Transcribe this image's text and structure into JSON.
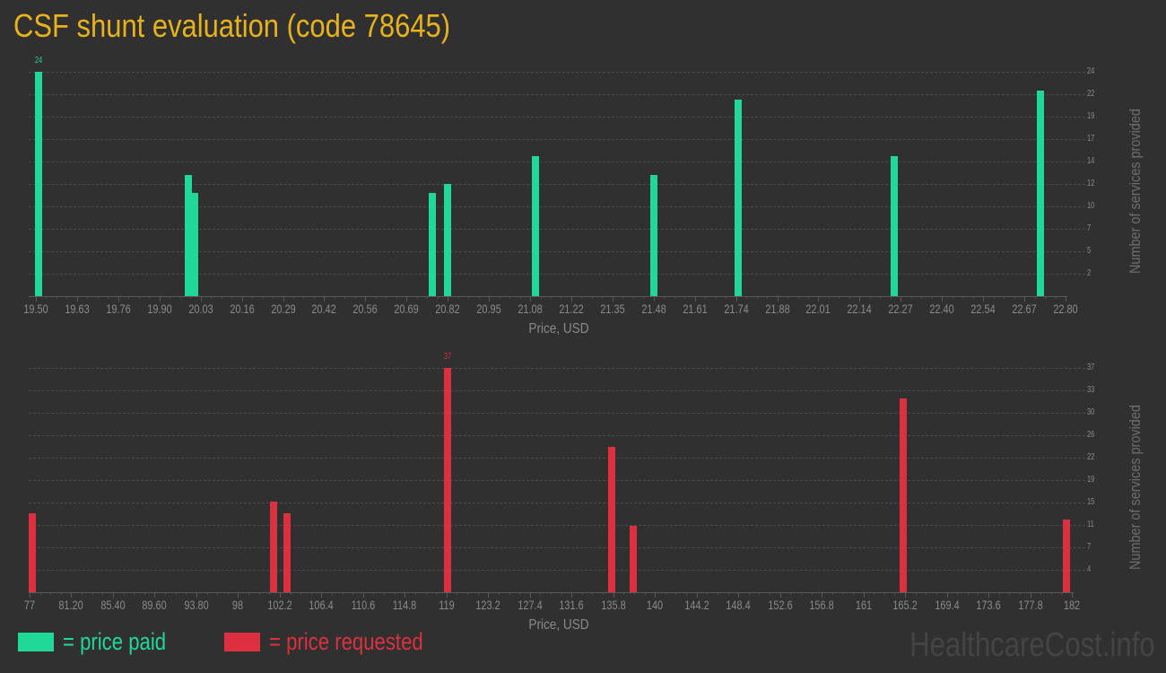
{
  "title": "CSF shunt evaluation (code 78645)",
  "colors": {
    "paid": "#20d898",
    "requested": "#dc3040",
    "title": "#e8b21e",
    "background": "#303030"
  },
  "legend": [
    {
      "label": "= price paid",
      "color": "#20d898"
    },
    {
      "label": "= price requested",
      "color": "#dc3040"
    }
  ],
  "watermark": "HealthcareCost.info",
  "chart_data": [
    {
      "type": "bar",
      "title": "price paid",
      "xlabel": "Price, USD",
      "ylabel": "Number of services provided",
      "xlim": [
        19.5,
        22.8
      ],
      "ylim": [
        0,
        24
      ],
      "grid": true,
      "x_ticks": [
        "19.50",
        "19.63",
        "19.76",
        "19.90",
        "20.03",
        "20.16",
        "20.29",
        "20.42",
        "20.56",
        "20.69",
        "20.82",
        "20.95",
        "21.08",
        "21.22",
        "21.35",
        "21.48",
        "21.61",
        "21.74",
        "21.88",
        "22.01",
        "22.14",
        "22.27",
        "22.40",
        "22.54",
        "22.67",
        "22.80"
      ],
      "y_ticks": [
        "24",
        "22",
        "19",
        "17",
        "14",
        "12",
        "10",
        "7",
        "5",
        "2"
      ],
      "x": [
        19.51,
        19.99,
        20.01,
        20.77,
        20.82,
        21.1,
        21.48,
        21.75,
        22.25,
        22.72
      ],
      "values": [
        24,
        13,
        11,
        11,
        12,
        15,
        13,
        21,
        15,
        22
      ],
      "max_label": "24",
      "color": "#20d898"
    },
    {
      "type": "bar",
      "title": "price requested",
      "xlabel": "Price, USD",
      "ylabel": "Number of services provided",
      "xlim": [
        77,
        182
      ],
      "ylim": [
        0,
        37
      ],
      "grid": true,
      "x_ticks": [
        "77",
        "81.20",
        "85.40",
        "89.60",
        "93.80",
        "98",
        "102.2",
        "106.4",
        "110.6",
        "114.8",
        "119",
        "123.2",
        "127.4",
        "131.6",
        "135.8",
        "140",
        "144.2",
        "148.4",
        "152.6",
        "156.8",
        "161",
        "165.2",
        "169.4",
        "173.6",
        "177.8",
        "182"
      ],
      "y_ticks": [
        "37",
        "33",
        "30",
        "26",
        "22",
        "19",
        "15",
        "11",
        "7",
        "4"
      ],
      "x": [
        77.3,
        101.6,
        102.9,
        119.1,
        135.6,
        137.8,
        165.0,
        181.5
      ],
      "values": [
        13,
        15,
        13,
        37,
        24,
        11,
        32,
        12
      ],
      "max_label": "37",
      "color": "#dc3040"
    }
  ]
}
